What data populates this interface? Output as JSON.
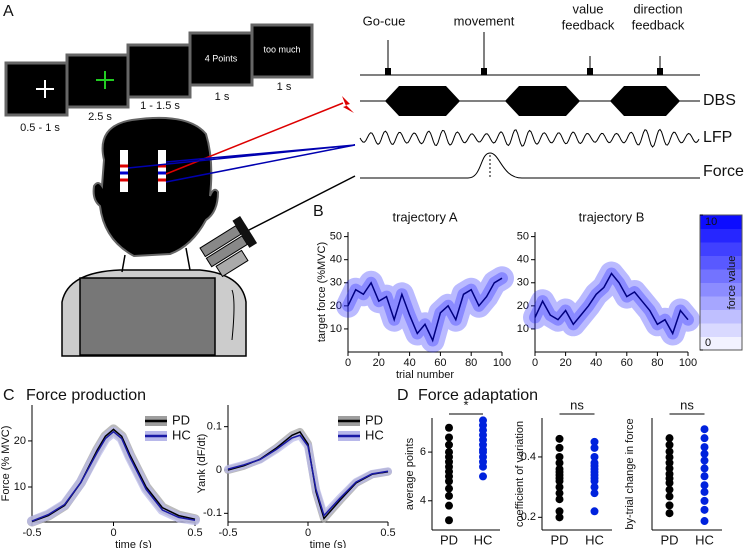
{
  "panel_a": {
    "label": "A",
    "screens": [
      {
        "duration": "0.5 - 1 s"
      },
      {
        "duration": "2.5 s"
      },
      {
        "duration": "1 - 1.5 s"
      },
      {
        "text": "4 Points",
        "duration": "1 s"
      },
      {
        "text": "too much",
        "duration": "1 s"
      }
    ],
    "events": [
      [
        "Go-cue"
      ],
      [
        "movement"
      ],
      [
        "value",
        "feedback"
      ],
      [
        "direction",
        "feedback"
      ]
    ],
    "signals": [
      "DBS",
      "LFP",
      "Force"
    ]
  },
  "panel_b": {
    "label": "B"
  },
  "panel_c": {
    "label": "C",
    "title": "Force production"
  },
  "panel_d": {
    "label": "D",
    "title": "Force adaptation"
  },
  "chart_data": [
    {
      "type": "line",
      "title": "trajectory A",
      "xlabel": "trial number",
      "ylabel": "target force (%MVC)",
      "x": [
        0,
        5,
        10,
        15,
        20,
        25,
        30,
        35,
        40,
        45,
        50,
        55,
        60,
        65,
        70,
        75,
        80,
        85,
        90,
        95,
        100
      ],
      "values": [
        20,
        27,
        25,
        30,
        22,
        24,
        14,
        25,
        16,
        8,
        12,
        5,
        17,
        20,
        14,
        25,
        27,
        20,
        24,
        30,
        32
      ],
      "color": "#000080",
      "band_color": "#1a1aff",
      "xlim": [
        0,
        100
      ],
      "xticks": [
        0,
        20,
        40,
        60,
        80,
        100
      ],
      "ylim": [
        0,
        52
      ],
      "yticks": [
        10,
        20,
        30,
        40,
        50
      ]
    },
    {
      "type": "line",
      "title": "trajectory B",
      "x": [
        0,
        5,
        10,
        15,
        20,
        25,
        30,
        35,
        40,
        45,
        50,
        55,
        60,
        65,
        70,
        75,
        80,
        85,
        90,
        95,
        100
      ],
      "values": [
        15,
        22,
        16,
        14,
        18,
        12,
        16,
        20,
        25,
        28,
        34,
        30,
        24,
        26,
        22,
        18,
        12,
        14,
        8,
        18,
        14
      ],
      "color": "#000080",
      "band_color": "#1a1aff",
      "xlim": [
        0,
        100
      ],
      "xticks": [
        0,
        20,
        40,
        60,
        80,
        100
      ],
      "ylim": [
        0,
        52
      ],
      "yticks": [
        10,
        20,
        30,
        40,
        50
      ]
    },
    {
      "type": "colorbar",
      "ylabel": "force value",
      "ylim": [
        0,
        10
      ],
      "yticks": [
        0,
        10
      ],
      "color_low": "#ffffff",
      "color_high": "#0000ff"
    },
    {
      "type": "line",
      "ylabel": "Force (% MVC)",
      "xlabel": "time (s)",
      "legend": "upper right",
      "x": [
        -0.5,
        -0.4,
        -0.3,
        -0.2,
        -0.1,
        -0.05,
        0,
        0.05,
        0.1,
        0.2,
        0.3,
        0.4,
        0.5
      ],
      "series": [
        {
          "name": "PD",
          "color": "#000000",
          "band_color": "#9e9e9e",
          "values": [
            2.5,
            3.8,
            6,
            11,
            18,
            21,
            22.5,
            21,
            17,
            10,
            5.5,
            3.8,
            3
          ]
        },
        {
          "name": "HC",
          "color": "#1a1aa6",
          "band_color": "#b8b8ea",
          "values": [
            2.6,
            4,
            6.2,
            11,
            17.5,
            20.5,
            22,
            20.5,
            16.5,
            9.5,
            5,
            3.4,
            2.8
          ]
        }
      ],
      "xlim": [
        -0.5,
        0.5
      ],
      "xticks": [
        -0.5,
        0,
        0.5
      ],
      "ylim": [
        2.4,
        27.8
      ],
      "yticks": [
        10,
        20
      ]
    },
    {
      "type": "line",
      "ylabel": "Yank (dF/dt)",
      "xlabel": "time (s)",
      "legend": "upper right",
      "x": [
        -0.5,
        -0.4,
        -0.3,
        -0.2,
        -0.1,
        -0.05,
        0,
        0.05,
        0.1,
        0.2,
        0.3,
        0.4,
        0.5
      ],
      "series": [
        {
          "name": "PD",
          "color": "#000000",
          "band_color": "#9e9e9e",
          "values": [
            0,
            0.01,
            0.025,
            0.05,
            0.08,
            0.088,
            0.06,
            -0.05,
            -0.112,
            -0.07,
            -0.03,
            -0.01,
            -0.004
          ]
        },
        {
          "name": "HC",
          "color": "#1a1aa6",
          "band_color": "#b8b8ea",
          "values": [
            0.002,
            0.012,
            0.024,
            0.047,
            0.074,
            0.08,
            0.055,
            -0.045,
            -0.105,
            -0.065,
            -0.028,
            -0.009,
            -0.003
          ]
        }
      ],
      "xlim": [
        -0.5,
        0.5
      ],
      "xticks": [
        -0.5,
        0,
        0.5
      ],
      "ylim": [
        -0.12,
        0.15
      ],
      "yticks": [
        -0.1,
        0,
        0.1
      ]
    },
    {
      "type": "strip",
      "ylabel": "average points",
      "annotation": "*",
      "groups": [
        {
          "name": "PD",
          "color": "#000000",
          "values": [
            3.2,
            3.8,
            4.2,
            4.5,
            4.8,
            5,
            5.2,
            5.4,
            5.6,
            5.8,
            6,
            6.3,
            6.6,
            7
          ]
        },
        {
          "name": "HC",
          "color": "#0022dd",
          "values": [
            5,
            5.4,
            5.6,
            5.8,
            6,
            6.1,
            6.3,
            6.5,
            6.7,
            6.9,
            7.1,
            7.3
          ]
        }
      ],
      "ylim": [
        2.8,
        7.4
      ],
      "yticks": [
        4,
        6
      ]
    },
    {
      "type": "strip",
      "ylabel": "coefficient of variation",
      "annotation": "ns",
      "groups": [
        {
          "name": "PD",
          "color": "#000000",
          "values": [
            0.2,
            0.22,
            0.26,
            0.28,
            0.3,
            0.32,
            0.33,
            0.34,
            0.35,
            0.36,
            0.38,
            0.4,
            0.43,
            0.46
          ]
        },
        {
          "name": "HC",
          "color": "#0022dd",
          "values": [
            0.22,
            0.28,
            0.3,
            0.32,
            0.33,
            0.34,
            0.35,
            0.36,
            0.37,
            0.38,
            0.4,
            0.43,
            0.45
          ]
        }
      ],
      "ylim": [
        0.158,
        0.529
      ],
      "yticks": [
        0.2,
        0.4
      ]
    },
    {
      "type": "strip",
      "ylabel": "by-trial change in force",
      "annotation": "ns",
      "groups": [
        {
          "name": "PD",
          "color": "#000000",
          "values": [
            0.15,
            0.22,
            0.3,
            0.36,
            0.42,
            0.46,
            0.5,
            0.55,
            0.6,
            0.65,
            0.7,
            0.76,
            0.82
          ]
        },
        {
          "name": "HC",
          "color": "#0022dd",
          "values": [
            0.08,
            0.18,
            0.26,
            0.34,
            0.4,
            0.48,
            0.55,
            0.62,
            0.68,
            0.74,
            0.82,
            0.9
          ]
        }
      ],
      "ylim": [
        0,
        1
      ]
    }
  ]
}
